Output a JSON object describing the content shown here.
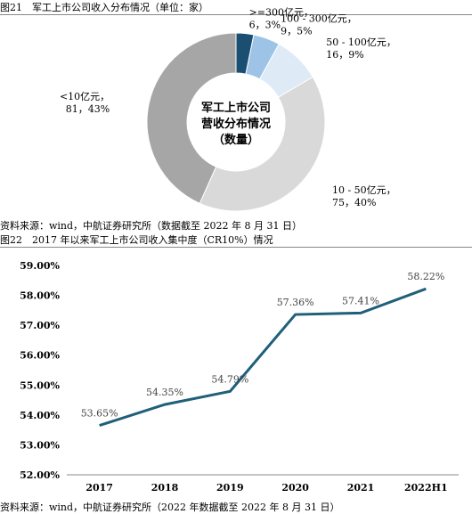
{
  "fig21": {
    "caption": "图21　军工上市公司收入分布情况（单位：家）",
    "source": "资料来源：wind，中航证券研究所（数据截至 2022 年 8 月 31 日）",
    "center_text": [
      "军工上市公司",
      "营收分布情况",
      "（数量）"
    ],
    "chart_data": {
      "type": "pie",
      "slices": [
        {
          "label": ">=300亿元",
          "count": 6,
          "percent": "3%",
          "color": "#1b4f72"
        },
        {
          "label": "100 - 300亿元",
          "count": 9,
          "percent": "5%",
          "color": "#9dc3e6"
        },
        {
          "label": "50 - 100亿元",
          "count": 16,
          "percent": "9%",
          "color": "#deebf7"
        },
        {
          "label": "10 - 50亿元",
          "count": 75,
          "percent": "40%",
          "color": "#d9d9d9"
        },
        {
          "label": "<10亿元",
          "count": 81,
          "percent": "43%",
          "color": "#a6a6a6"
        }
      ]
    }
  },
  "fig22": {
    "caption": "图22　2017 年以来军工上市公司收入集中度（CR10%）情况",
    "source": "资料来源：wind，中航证券研究所（2022 年数据截至 2022 年 8 月 31 日）",
    "chart_data": {
      "type": "line",
      "categories": [
        "2017",
        "2018",
        "2019",
        "2020",
        "2021",
        "2022H1"
      ],
      "values": [
        53.65,
        54.35,
        54.79,
        57.36,
        57.41,
        58.22
      ],
      "labels": [
        "53.65%",
        "54.35%",
        "54.79%",
        "57.36%",
        "57.41%",
        "58.22%"
      ],
      "ylim": [
        52,
        59
      ],
      "yticks": [
        "52.00%",
        "53.00%",
        "54.00%",
        "55.00%",
        "56.00%",
        "57.00%",
        "58.00%",
        "59.00%"
      ],
      "color": "#1f5f7a"
    }
  }
}
